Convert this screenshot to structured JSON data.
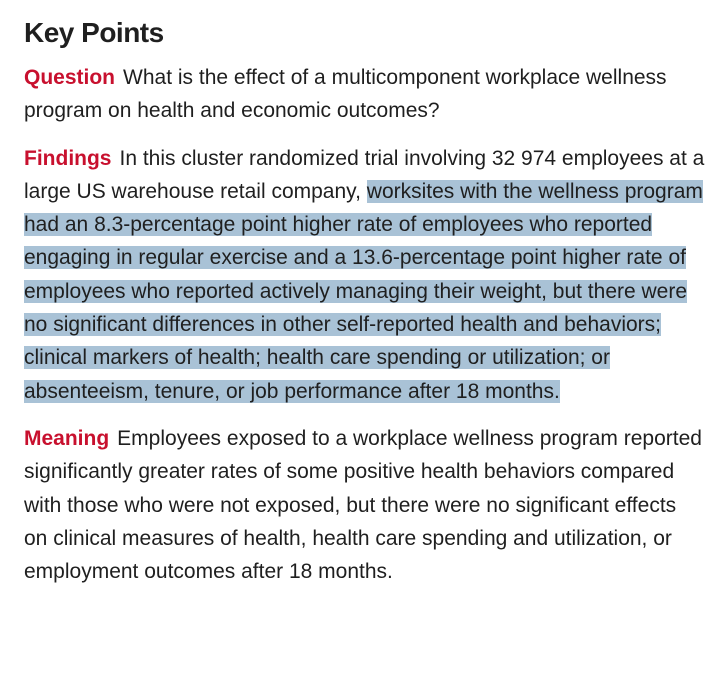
{
  "title": "Key Points",
  "question": {
    "label": "Question",
    "text": "What is the effect of a multicomponent workplace wellness program on health and economic outcomes?"
  },
  "findings": {
    "label": "Findings",
    "text": "In this cluster randomized trial involving 32 974 employees at a large US warehouse retail company, ",
    "highlighted_text": "worksites with the wellness program had an 8.3-percentage point higher rate of employees who reported engaging in regular exercise and a 13.6-percentage point higher rate of employees who reported actively managing their weight, but there were no significant differences in other self-reported health and behaviors; clinical markers of health; health care spending or utilization; or absenteeism, tenure, or job performance after 18 months.",
    "highlight_color": "#a9c2d6"
  },
  "meaning": {
    "label": "Meaning",
    "text": "Employees exposed to a workplace wellness program reported significantly greater rates of some positive health behaviors compared with those who were not exposed, but there were no significant effects on clinical measures of health, health care spending and utilization, or employment outcomes after 18 months."
  },
  "colors": {
    "label": "#c8102e",
    "text": "#1f1f1f"
  }
}
